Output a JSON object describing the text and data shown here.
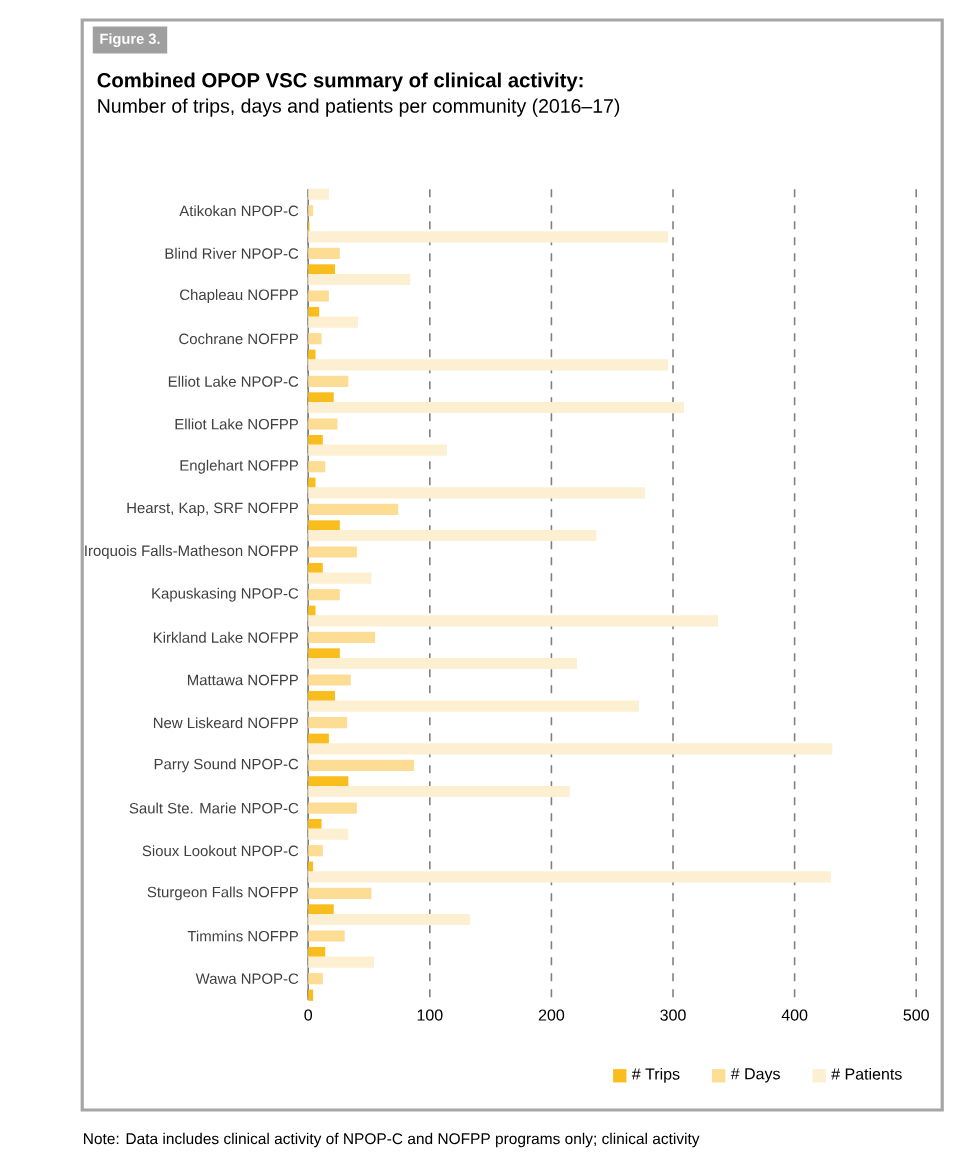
{
  "chart_data": {
    "type": "bar",
    "orientation": "horizontal",
    "title": "Combined OPOP VSC summary of clinical activity:",
    "subtitle": "Number of trips, days and patients per community (2016–17)",
    "annotations": [
      "Figure 3.",
      "Note: Data includes clinical activity of NPOP-C and NOFPP programs only; clinical activity"
    ],
    "categories": [
      "Atikokan NPOP-C",
      "Blind River NPOP-C",
      "Chapleau NOFPP",
      "Cochrane NOFPP",
      "Elliot Lake NPOP-C",
      "Elliot Lake NOFPP",
      "Englehart NOFPP",
      "Hearst, Kap, SRF NOFPP",
      "Iroquois Falls-Matheson NOFPP",
      "Kapuskasing NPOP-C",
      "Kirkland Lake NOFPP",
      "Mattawa NOFPP",
      "New Liskeard NOFPP",
      "Parry Sound NPOP-C",
      "Sault Ste. Marie NPOP-C",
      "Sioux Lookout NPOP-C",
      "Sturgeon Falls NOFPP",
      "Timmins NOFPP",
      "Wawa NPOP-C"
    ],
    "series": [
      {
        "name": "# Trips",
        "color": "#f9be1e",
        "values": [
          1,
          22,
          9,
          6,
          21,
          12,
          6,
          26,
          12,
          6,
          26,
          22,
          17,
          33,
          11,
          4,
          21,
          14,
          4
        ]
      },
      {
        "name": "# Days",
        "color": "#fddc94",
        "values": [
          4,
          26,
          17,
          11,
          33,
          24,
          14,
          74,
          40,
          26,
          55,
          35,
          32,
          87,
          40,
          12,
          52,
          30,
          12
        ]
      },
      {
        "name": "# Patients",
        "color": "#fdefd1",
        "values": [
          17,
          296,
          84,
          41,
          296,
          309,
          114,
          277,
          237,
          52,
          337,
          221,
          272,
          431,
          215,
          33,
          430,
          133,
          54
        ]
      }
    ],
    "xlim": [
      0,
      500
    ],
    "xticks": [
      0,
      100,
      200,
      300,
      400,
      500
    ],
    "grid": "x",
    "legend": "bottom right"
  }
}
